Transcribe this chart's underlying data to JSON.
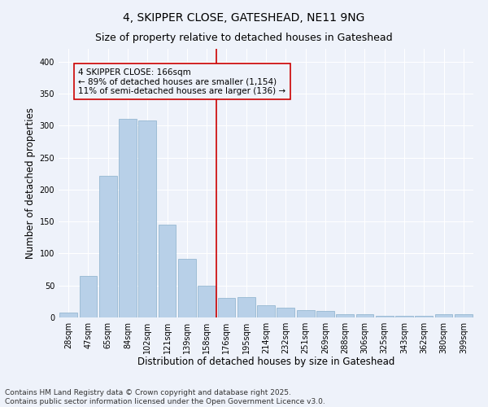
{
  "title": "4, SKIPPER CLOSE, GATESHEAD, NE11 9NG",
  "subtitle": "Size of property relative to detached houses in Gateshead",
  "xlabel": "Distribution of detached houses by size in Gateshead",
  "ylabel": "Number of detached properties",
  "categories": [
    "28sqm",
    "47sqm",
    "65sqm",
    "84sqm",
    "102sqm",
    "121sqm",
    "139sqm",
    "158sqm",
    "176sqm",
    "195sqm",
    "214sqm",
    "232sqm",
    "251sqm",
    "269sqm",
    "288sqm",
    "306sqm",
    "325sqm",
    "343sqm",
    "362sqm",
    "380sqm",
    "399sqm"
  ],
  "values": [
    8,
    65,
    222,
    310,
    308,
    145,
    92,
    50,
    30,
    32,
    19,
    15,
    11,
    10,
    5,
    5,
    3,
    2,
    2,
    5,
    5
  ],
  "bar_color": "#b8d0e8",
  "bar_edge_color": "#8ab0cc",
  "vline_x_index": 8,
  "vline_color": "#cc0000",
  "annotation_line1": "4 SKIPPER CLOSE: 166sqm",
  "annotation_line2": "← 89% of detached houses are smaller (1,154)",
  "annotation_line3": "11% of semi-detached houses are larger (136) →",
  "annotation_box_color": "#cc0000",
  "ylim": [
    0,
    420
  ],
  "yticks": [
    0,
    50,
    100,
    150,
    200,
    250,
    300,
    350,
    400
  ],
  "background_color": "#eef2fa",
  "footer_text": "Contains HM Land Registry data © Crown copyright and database right 2025.\nContains public sector information licensed under the Open Government Licence v3.0.",
  "title_fontsize": 10,
  "subtitle_fontsize": 9,
  "xlabel_fontsize": 8.5,
  "ylabel_fontsize": 8.5,
  "tick_fontsize": 7,
  "footer_fontsize": 6.5,
  "ann_fontsize": 7.5
}
